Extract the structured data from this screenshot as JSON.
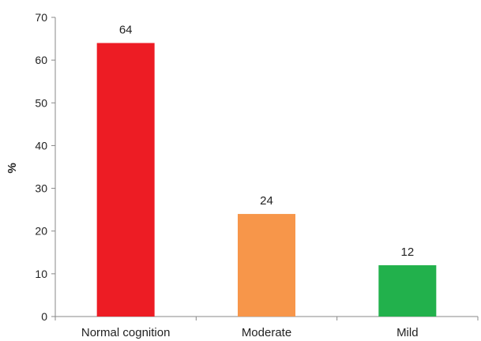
{
  "chart_data": {
    "type": "bar",
    "title": "",
    "xlabel": "",
    "ylabel": "%",
    "ylim": [
      0,
      70
    ],
    "yticks": [
      0,
      10,
      20,
      30,
      40,
      50,
      60,
      70
    ],
    "grid": false,
    "legend": "none",
    "categories": [
      "Normal cognition",
      "Moderate",
      "Mild"
    ],
    "values": [
      64,
      24,
      12
    ],
    "data_labels": [
      "64",
      "24",
      "12"
    ],
    "colors": [
      "#ed1c24",
      "#f7964a",
      "#22b14c"
    ],
    "axis_color": "#888888"
  }
}
